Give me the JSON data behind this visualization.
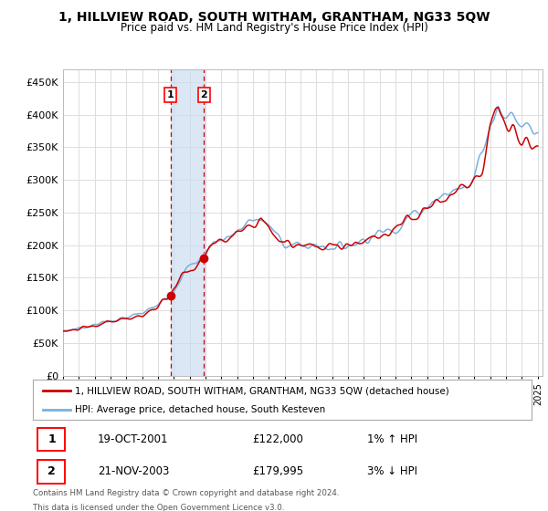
{
  "title": "1, HILLVIEW ROAD, SOUTH WITHAM, GRANTHAM, NG33 5QW",
  "subtitle": "Price paid vs. HM Land Registry's House Price Index (HPI)",
  "ylim": [
    0,
    470000
  ],
  "yticks": [
    0,
    50000,
    100000,
    150000,
    200000,
    250000,
    300000,
    350000,
    400000,
    450000
  ],
  "ytick_labels": [
    "£0",
    "£50K",
    "£100K",
    "£150K",
    "£200K",
    "£250K",
    "£300K",
    "£350K",
    "£400K",
    "£450K"
  ],
  "sale1_date": "19-OCT-2001",
  "sale1_price": 122000,
  "sale1_hpi": "1% ↑ HPI",
  "sale1_x": 2001.8,
  "sale2_date": "21-NOV-2003",
  "sale2_price": 179995,
  "sale2_hpi": "3% ↓ HPI",
  "sale2_x": 2003.9,
  "legend_line1": "1, HILLVIEW ROAD, SOUTH WITHAM, GRANTHAM, NG33 5QW (detached house)",
  "legend_line2": "HPI: Average price, detached house, South Kesteven",
  "footer1": "Contains HM Land Registry data © Crown copyright and database right 2024.",
  "footer2": "This data is licensed under the Open Government Licence v3.0.",
  "hpi_color": "#7ab0dc",
  "price_color": "#cc0000",
  "bg_color": "#ffffff",
  "plot_bg": "#ffffff",
  "grid_color": "#dddddd",
  "shade_color": "#ccddf0"
}
